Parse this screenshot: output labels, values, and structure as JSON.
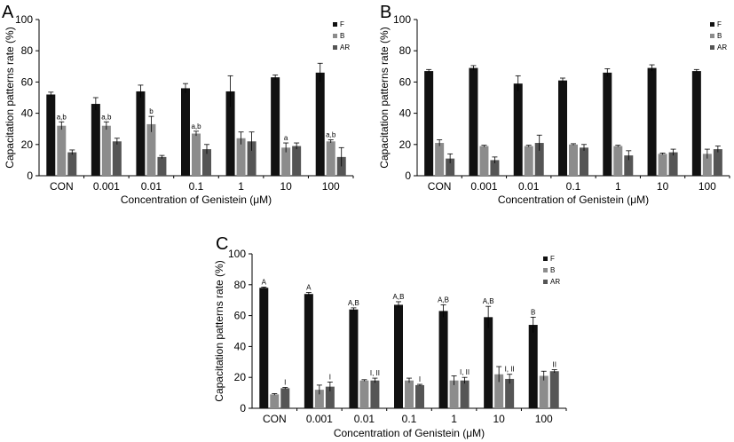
{
  "chart_data": [
    {
      "panel": "A",
      "type": "bar",
      "title": "",
      "xlabel": "Concentration of Genistein (μM)",
      "ylabel": "Capacitation patterns rate (%)",
      "ylim": [
        0,
        100
      ],
      "yticks": [
        "0",
        "20",
        "40",
        "60",
        "80",
        "100"
      ],
      "categories": [
        "CON",
        "0.001",
        "0.01",
        "0.1",
        "1",
        "10",
        "100"
      ],
      "series": [
        {
          "name": "F",
          "color": "#111111",
          "values": [
            52,
            46,
            54,
            56,
            54,
            63,
            66
          ],
          "errors": [
            1.5,
            4,
            4,
            3,
            10,
            1.5,
            6
          ],
          "labels": [
            "",
            "",
            "",
            "",
            "",
            "",
            ""
          ]
        },
        {
          "name": "B",
          "color": "#8c8c8c",
          "values": [
            32,
            32,
            33,
            27,
            24,
            18,
            22
          ],
          "errors": [
            2.5,
            2.5,
            5,
            1.5,
            4,
            3,
            1
          ],
          "labels": [
            "a,b",
            "a,b",
            "b",
            "a,b",
            "",
            "a",
            "a,b"
          ]
        },
        {
          "name": "AR",
          "color": "#555555",
          "values": [
            15,
            22,
            12,
            17,
            22,
            19,
            12
          ],
          "errors": [
            1.5,
            2,
            1,
            3,
            6,
            2,
            6
          ],
          "labels": [
            "",
            "",
            "",
            "",
            "",
            "",
            ""
          ]
        }
      ],
      "legend_position": "top-right"
    },
    {
      "panel": "B",
      "type": "bar",
      "title": "",
      "xlabel": "Concentration of Genistein (μM)",
      "ylabel": "Capacitation patterns rate (%)",
      "ylim": [
        0,
        100
      ],
      "yticks": [
        "0",
        "20",
        "40",
        "60",
        "80",
        "100"
      ],
      "categories": [
        "CON",
        "0.001",
        "0.01",
        "0.1",
        "1",
        "10",
        "100"
      ],
      "series": [
        {
          "name": "F",
          "color": "#111111",
          "values": [
            67,
            69,
            59,
            61,
            66,
            69,
            67
          ],
          "errors": [
            1,
            1.5,
            5,
            1.5,
            2.5,
            2,
            1
          ],
          "labels": [
            "",
            "",
            "",
            "",
            "",
            "",
            ""
          ]
        },
        {
          "name": "B",
          "color": "#8c8c8c",
          "values": [
            21,
            19,
            19,
            20,
            19,
            14,
            14
          ],
          "errors": [
            2,
            0.5,
            0.5,
            0.5,
            0.5,
            0.5,
            3
          ],
          "labels": [
            "",
            "",
            "",
            "",
            "",
            "",
            ""
          ]
        },
        {
          "name": "AR",
          "color": "#555555",
          "values": [
            11,
            10,
            21,
            18,
            13,
            15,
            17
          ],
          "errors": [
            3,
            2,
            5,
            2,
            3,
            2,
            2
          ],
          "labels": [
            "",
            "",
            "",
            "",
            "",
            "",
            ""
          ]
        }
      ],
      "legend_position": "top-right"
    },
    {
      "panel": "C",
      "type": "bar",
      "title": "",
      "xlabel": "Concentration of Genistein (μM)",
      "ylabel": "Capacitation patterns rate (%)",
      "ylim": [
        0,
        100
      ],
      "yticks": [
        "0",
        "20",
        "40",
        "60",
        "80",
        "100"
      ],
      "categories": [
        "CON",
        "0.001",
        "0.01",
        "0.1",
        "1",
        "10",
        "100"
      ],
      "series": [
        {
          "name": "F",
          "color": "#111111",
          "values": [
            78,
            74,
            64,
            67,
            63,
            59,
            54
          ],
          "errors": [
            0.5,
            1,
            1,
            2,
            4,
            7,
            5
          ],
          "labels": [
            "A",
            "A",
            "A,B",
            "A,B",
            "A,B",
            "A,B",
            "B"
          ]
        },
        {
          "name": "B",
          "color": "#8c8c8c",
          "values": [
            9,
            12,
            18,
            18,
            18,
            22,
            21
          ],
          "errors": [
            0.5,
            3,
            0.5,
            1.5,
            3,
            5,
            3
          ],
          "labels": [
            "",
            "",
            "",
            "",
            "",
            "",
            ""
          ]
        },
        {
          "name": "AR",
          "color": "#555555",
          "values": [
            13,
            14,
            18,
            15,
            18,
            19,
            24
          ],
          "errors": [
            0.5,
            3,
            1.5,
            0.5,
            2,
            3,
            1
          ],
          "labels": [
            "I",
            "I",
            "I, II",
            "I",
            "I, II",
            "I, II",
            "II"
          ]
        }
      ],
      "legend_position": "top-right"
    }
  ]
}
